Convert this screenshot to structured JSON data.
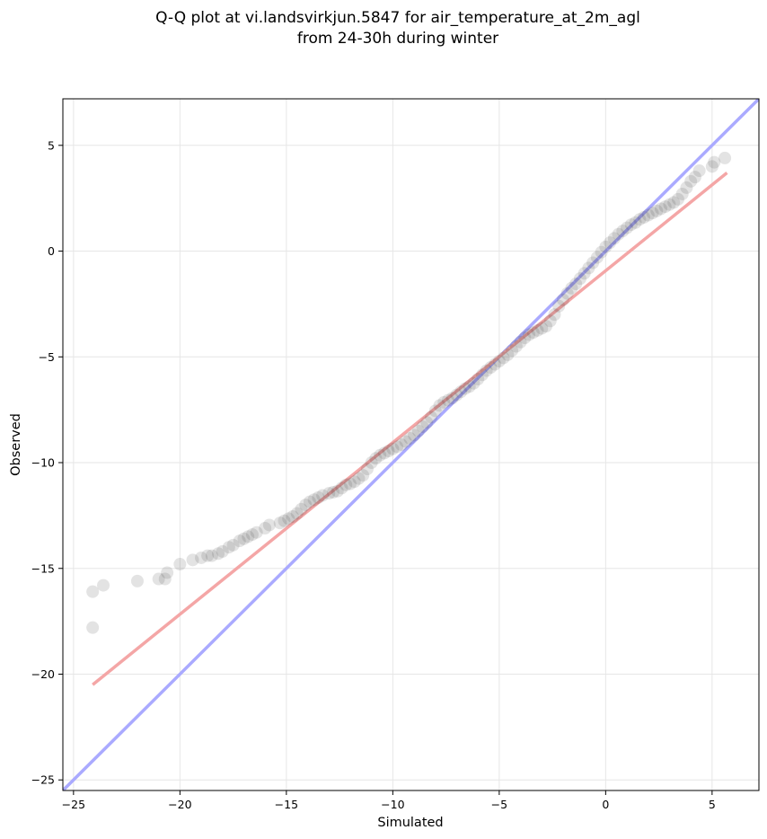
{
  "chart_data": {
    "type": "scatter",
    "title_lines": [
      "Q-Q plot at vi.landsvirkjun.5847 for air_temperature_at_2m_agl",
      "from 24-30h during winter"
    ],
    "xlabel": "Simulated",
    "ylabel": "Observed",
    "xlim": [
      -25.5,
      7.2
    ],
    "ylim": [
      -25.5,
      7.2
    ],
    "x_ticks": [
      -25,
      -20,
      -15,
      -10,
      -5,
      0,
      5
    ],
    "y_ticks": [
      -25,
      -20,
      -15,
      -10,
      -5,
      0,
      5
    ],
    "x_tick_labels": [
      "−25",
      "−20",
      "−15",
      "−10",
      "−5",
      "0",
      "5"
    ],
    "y_tick_labels": [
      "−25",
      "−20",
      "−15",
      "−10",
      "−5",
      "0",
      "5"
    ],
    "grid": true,
    "identity_line": {
      "color": "#aaaaff",
      "from": [
        -25.5,
        -25.5
      ],
      "to": [
        7.2,
        7.2
      ]
    },
    "fit_line": {
      "color": "#f4a6a6",
      "from": [
        -24.1,
        -20.5
      ],
      "to": [
        5.7,
        3.7
      ]
    },
    "point_color": "#3a3a3a",
    "quantile_points": [
      [
        -24.1,
        -17.8
      ],
      [
        -24.1,
        -16.1
      ],
      [
        -23.6,
        -15.8
      ],
      [
        -22.0,
        -15.6
      ],
      [
        -21.0,
        -15.5
      ],
      [
        -20.7,
        -15.5
      ],
      [
        -20.6,
        -15.2
      ],
      [
        -20.0,
        -14.8
      ],
      [
        -19.4,
        -14.6
      ],
      [
        -19.0,
        -14.5
      ],
      [
        -18.7,
        -14.4
      ],
      [
        -18.5,
        -14.4
      ],
      [
        -18.2,
        -14.3
      ],
      [
        -18.0,
        -14.2
      ],
      [
        -17.7,
        -14.0
      ],
      [
        -17.5,
        -13.9
      ],
      [
        -17.2,
        -13.7
      ],
      [
        -17.0,
        -13.6
      ],
      [
        -16.8,
        -13.5
      ],
      [
        -16.6,
        -13.4
      ],
      [
        -16.4,
        -13.3
      ],
      [
        -16.0,
        -13.1
      ],
      [
        -15.8,
        -12.95
      ],
      [
        -15.3,
        -12.85
      ],
      [
        -15.1,
        -12.75
      ],
      [
        -14.9,
        -12.65
      ],
      [
        -14.7,
        -12.55
      ],
      [
        -14.5,
        -12.4
      ],
      [
        -14.3,
        -12.2
      ],
      [
        -14.1,
        -12.0
      ],
      [
        -13.9,
        -11.85
      ],
      [
        -13.7,
        -11.75
      ],
      [
        -13.5,
        -11.65
      ],
      [
        -13.3,
        -11.55
      ],
      [
        -13.0,
        -11.45
      ],
      [
        -12.8,
        -11.4
      ],
      [
        -12.6,
        -11.35
      ],
      [
        -12.4,
        -11.2
      ],
      [
        -12.2,
        -11.05
      ],
      [
        -12.0,
        -11.0
      ],
      [
        -11.8,
        -10.9
      ],
      [
        -11.6,
        -10.75
      ],
      [
        -11.4,
        -10.6
      ],
      [
        -11.2,
        -10.3
      ],
      [
        -11.0,
        -10.0
      ],
      [
        -10.8,
        -9.8
      ],
      [
        -10.6,
        -9.65
      ],
      [
        -10.4,
        -9.55
      ],
      [
        -10.2,
        -9.45
      ],
      [
        -10.0,
        -9.35
      ],
      [
        -9.8,
        -9.25
      ],
      [
        -9.6,
        -9.15
      ],
      [
        -9.4,
        -9.0
      ],
      [
        -9.2,
        -8.85
      ],
      [
        -9.0,
        -8.7
      ],
      [
        -8.8,
        -8.5
      ],
      [
        -8.6,
        -8.3
      ],
      [
        -8.4,
        -8.1
      ],
      [
        -8.2,
        -7.85
      ],
      [
        -8.0,
        -7.55
      ],
      [
        -7.8,
        -7.3
      ],
      [
        -7.6,
        -7.15
      ],
      [
        -7.4,
        -7.05
      ],
      [
        -7.2,
        -6.95
      ],
      [
        -7.0,
        -6.8
      ],
      [
        -6.8,
        -6.65
      ],
      [
        -6.6,
        -6.5
      ],
      [
        -6.4,
        -6.4
      ],
      [
        -6.2,
        -6.25
      ],
      [
        -6.0,
        -6.05
      ],
      [
        -5.8,
        -5.85
      ],
      [
        -5.6,
        -5.65
      ],
      [
        -5.4,
        -5.5
      ],
      [
        -5.2,
        -5.35
      ],
      [
        -5.0,
        -5.2
      ],
      [
        -4.8,
        -5.05
      ],
      [
        -4.6,
        -4.9
      ],
      [
        -4.4,
        -4.7
      ],
      [
        -4.2,
        -4.5
      ],
      [
        -4.0,
        -4.3
      ],
      [
        -3.8,
        -4.1
      ],
      [
        -3.6,
        -3.95
      ],
      [
        -3.4,
        -3.85
      ],
      [
        -3.2,
        -3.75
      ],
      [
        -3.0,
        -3.65
      ],
      [
        -2.8,
        -3.55
      ],
      [
        -2.6,
        -3.3
      ],
      [
        -2.4,
        -3.0
      ],
      [
        -2.2,
        -2.6
      ],
      [
        -2.0,
        -2.3
      ],
      [
        -1.8,
        -2.0
      ],
      [
        -1.6,
        -1.75
      ],
      [
        -1.4,
        -1.55
      ],
      [
        -1.2,
        -1.3
      ],
      [
        -1.0,
        -1.05
      ],
      [
        -0.8,
        -0.8
      ],
      [
        -0.6,
        -0.55
      ],
      [
        -0.4,
        -0.3
      ],
      [
        -0.2,
        -0.05
      ],
      [
        0.0,
        0.2
      ],
      [
        0.2,
        0.4
      ],
      [
        0.4,
        0.6
      ],
      [
        0.6,
        0.8
      ],
      [
        0.8,
        0.95
      ],
      [
        1.0,
        1.1
      ],
      [
        1.2,
        1.25
      ],
      [
        1.4,
        1.35
      ],
      [
        1.6,
        1.5
      ],
      [
        1.8,
        1.6
      ],
      [
        2.0,
        1.7
      ],
      [
        2.2,
        1.8
      ],
      [
        2.4,
        1.9
      ],
      [
        2.6,
        2.0
      ],
      [
        2.8,
        2.1
      ],
      [
        3.0,
        2.2
      ],
      [
        3.2,
        2.3
      ],
      [
        3.4,
        2.45
      ],
      [
        3.6,
        2.7
      ],
      [
        3.8,
        3.0
      ],
      [
        4.0,
        3.3
      ],
      [
        4.2,
        3.5
      ],
      [
        4.4,
        3.8
      ],
      [
        5.0,
        4.0
      ],
      [
        5.1,
        4.2
      ],
      [
        5.6,
        4.4
      ]
    ]
  }
}
